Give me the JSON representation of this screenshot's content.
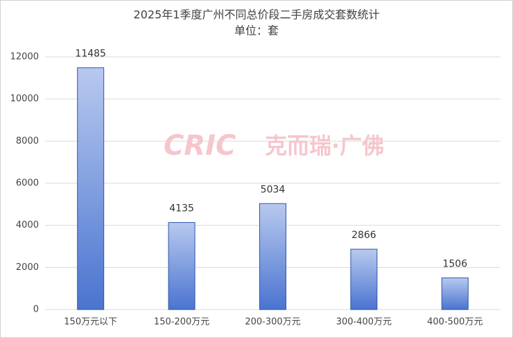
{
  "chart_data": {
    "type": "bar",
    "title": "2025年1季度广州不同总价段二手房成交套数统计",
    "subtitle": "单位：套",
    "watermark": [
      "CRIC",
      "克而瑞·广佛"
    ],
    "categories": [
      "150万元以下",
      "150-200万元",
      "200-300万元",
      "300-400万元",
      "400-500万元"
    ],
    "values": [
      11485,
      4135,
      5034,
      2866,
      1506
    ],
    "color": "#4a74d0",
    "ylim": [
      0,
      12000
    ],
    "yticks": [
      0,
      2000,
      4000,
      6000,
      8000,
      10000,
      12000
    ],
    "grid": true
  }
}
